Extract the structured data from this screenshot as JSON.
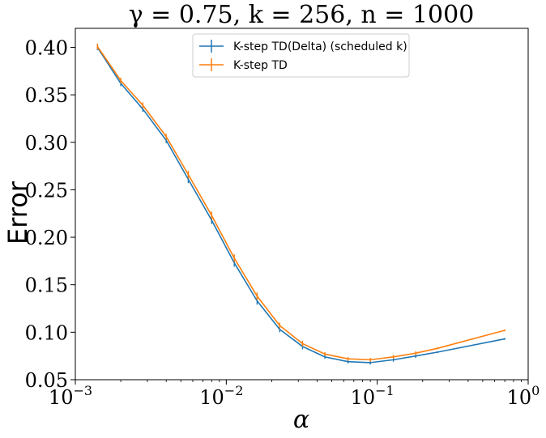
{
  "chart_data": {
    "type": "line",
    "title": "γ = 0.75, k = 256, n = 1000",
    "xlabel": "α",
    "ylabel": "Error",
    "xscale": "log",
    "xlim": [
      0.001,
      1
    ],
    "ylim": [
      0.05,
      0.42
    ],
    "x_ticks": [
      {
        "value": 0.001,
        "base": "10",
        "exp": "−3"
      },
      {
        "value": 0.01,
        "base": "10",
        "exp": "−2"
      },
      {
        "value": 0.1,
        "base": "10",
        "exp": "−1"
      },
      {
        "value": 1,
        "base": "10",
        "exp": "0"
      }
    ],
    "y_ticks": [
      {
        "value": 0.05,
        "label": "0.05"
      },
      {
        "value": 0.1,
        "label": "0.10"
      },
      {
        "value": 0.15,
        "label": "0.15"
      },
      {
        "value": 0.2,
        "label": "0.20"
      },
      {
        "value": 0.25,
        "label": "0.25"
      },
      {
        "value": 0.3,
        "label": "0.30"
      },
      {
        "value": 0.35,
        "label": "0.35"
      },
      {
        "value": 0.4,
        "label": "0.40"
      }
    ],
    "legend_position": "upper center",
    "grid": false,
    "x": [
      0.0014,
      0.002,
      0.0028,
      0.004,
      0.0056,
      0.008,
      0.0113,
      0.016,
      0.0226,
      0.032,
      0.045,
      0.064,
      0.09,
      0.128,
      0.18,
      0.25,
      0.7
    ],
    "series": [
      {
        "name": "K-step TD(Delta) (scheduled k)",
        "color": "#1f77b4",
        "values": [
          0.4,
          0.362,
          0.335,
          0.302,
          0.261,
          0.218,
          0.173,
          0.133,
          0.103,
          0.085,
          0.074,
          0.069,
          0.068,
          0.071,
          0.075,
          0.079,
          0.093
        ],
        "err": [
          0.003,
          0.003,
          0.003,
          0.003,
          0.004,
          0.004,
          0.004,
          0.004,
          0.003,
          0.003,
          0.002,
          0.002,
          0.002,
          0.002,
          0.002,
          0.001,
          0.001
        ]
      },
      {
        "name": "K-step TD",
        "color": "#ff7f0e",
        "values": [
          0.401,
          0.365,
          0.339,
          0.306,
          0.266,
          0.223,
          0.178,
          0.138,
          0.107,
          0.088,
          0.077,
          0.072,
          0.071,
          0.074,
          0.078,
          0.083,
          0.102
        ],
        "err": [
          0.003,
          0.003,
          0.003,
          0.003,
          0.004,
          0.004,
          0.004,
          0.004,
          0.003,
          0.003,
          0.002,
          0.002,
          0.002,
          0.002,
          0.002,
          0.001,
          0.001
        ]
      }
    ]
  }
}
